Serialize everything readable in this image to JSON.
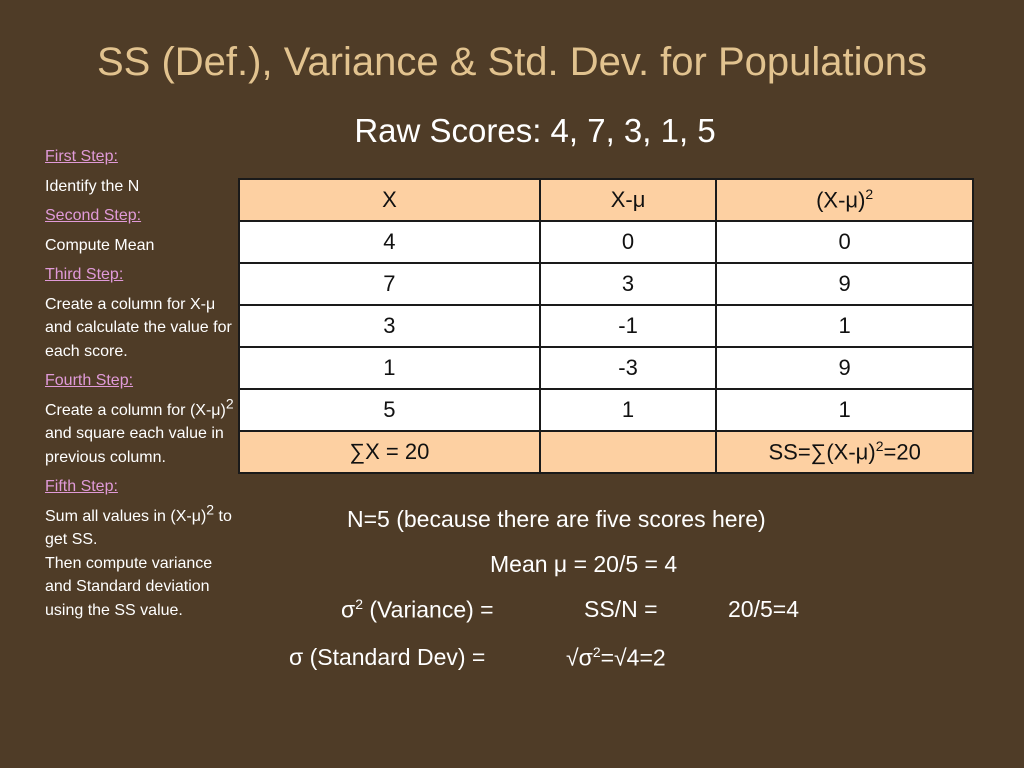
{
  "title": "SS (Def.), Variance & Std. Dev. for Populations",
  "subtitle": "Raw Scores: 4, 7, 3, 1, 5",
  "steps": [
    {
      "heading": "First Step:",
      "text": "Identify the N"
    },
    {
      "heading": "Second Step:",
      "text": "Compute Mean"
    },
    {
      "heading": "Third Step:",
      "text": "Create a column for X-μ and calculate the value for each score."
    },
    {
      "heading": "Fourth Step:",
      "text_before": "Create a column for (X-μ)",
      "sup": "2",
      "text_after": " and square each value in previous column."
    },
    {
      "heading": "Fifth Step:",
      "text_before": "Sum all values in (X-μ)",
      "sup": "2",
      "text_after": " to get SS.",
      "text_extra": "Then compute variance and Standard deviation using the SS value."
    }
  ],
  "table": {
    "headers": [
      "X",
      "X-μ",
      "(X-μ)",
      "2"
    ],
    "rows": [
      [
        "4",
        "0",
        "0"
      ],
      [
        "7",
        "3",
        "9"
      ],
      [
        "3",
        "-1",
        "1"
      ],
      [
        "1",
        "-3",
        "9"
      ],
      [
        "5",
        "1",
        "1"
      ]
    ],
    "total_x": "∑X = 20",
    "total_empty": "",
    "total_ss_before": "SS=∑(X-μ)",
    "total_ss_sup": "2",
    "total_ss_after": "=20"
  },
  "results": {
    "n_line": "N=5 (because there are five scores here)",
    "mean_line": "Mean μ = 20/5 = 4",
    "variance_label": "σ",
    "variance_sup": "2",
    "variance_label_rest": " (Variance) =",
    "variance_formula": "SS/N =",
    "variance_value": "20/5=4",
    "sd_label": "σ (Standard Dev) =",
    "sd_value_before": "√σ",
    "sd_value_sup": "2",
    "sd_value_after": "=√4=2"
  }
}
